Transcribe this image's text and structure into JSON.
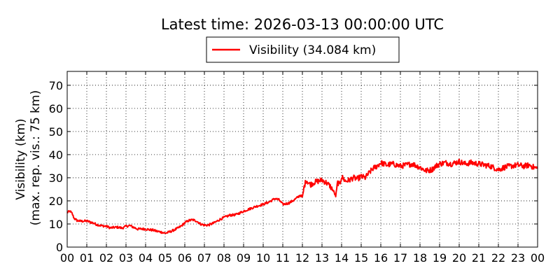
{
  "chart_data": {
    "type": "line",
    "title": "Latest time: 2026-03-13 00:00:00 UTC",
    "ylabel": "Visibility (km)",
    "ylabel2": "(max. rep. vis.: 75 km)",
    "xlabel": "",
    "xlim": [
      0,
      24
    ],
    "ylim": [
      0,
      76
    ],
    "x_ticks": [
      0,
      1,
      2,
      3,
      4,
      5,
      6,
      7,
      8,
      9,
      10,
      11,
      12,
      13,
      14,
      15,
      16,
      17,
      18,
      19,
      20,
      21,
      22,
      23,
      24
    ],
    "x_tick_labels": [
      "00",
      "01",
      "02",
      "03",
      "04",
      "05",
      "06",
      "07",
      "08",
      "09",
      "10",
      "11",
      "12",
      "13",
      "14",
      "15",
      "16",
      "17",
      "18",
      "19",
      "20",
      "21",
      "22",
      "23",
      "00"
    ],
    "y_ticks": [
      0,
      10,
      20,
      30,
      40,
      50,
      60,
      70
    ],
    "y_tick_labels": [
      "0",
      "10",
      "20",
      "30",
      "40",
      "50",
      "60",
      "70"
    ],
    "grid": true,
    "legend_position": "top-center",
    "series": [
      {
        "name": "Visibility (34.084 km)",
        "color": "#ff0000",
        "x": [
          0,
          0.15,
          0.25,
          0.35,
          0.5,
          0.7,
          1.0,
          1.3,
          1.5,
          1.7,
          2.0,
          2.2,
          2.4,
          2.6,
          2.8,
          3.0,
          3.2,
          3.4,
          3.6,
          3.8,
          4.0,
          4.2,
          4.4,
          4.6,
          4.8,
          5.0,
          5.2,
          5.4,
          5.6,
          5.8,
          6.0,
          6.2,
          6.4,
          6.6,
          6.8,
          7.0,
          7.2,
          7.5,
          7.8,
          8.0,
          8.3,
          8.6,
          9.0,
          9.3,
          9.6,
          10.0,
          10.3,
          10.6,
          10.8,
          11.0,
          11.3,
          11.6,
          11.9,
          12.0,
          12.1,
          12.2,
          12.4,
          12.6,
          12.8,
          13.0,
          13.2,
          13.4,
          13.6,
          13.7,
          13.8,
          13.9,
          14.0,
          14.2,
          14.4,
          14.6,
          14.8,
          15.0,
          15.2,
          15.4,
          15.6,
          15.8,
          16.0,
          16.3,
          16.6,
          17.0,
          17.3,
          17.6,
          18.0,
          18.3,
          18.6,
          18.8,
          19.0,
          19.3,
          19.6,
          20.0,
          20.3,
          20.6,
          21.0,
          21.3,
          21.6,
          22.0,
          22.3,
          22.6,
          23.0,
          23.3,
          23.6,
          23.8,
          24.0
        ],
        "y": [
          15,
          15.5,
          14.5,
          12.5,
          11.5,
          11.2,
          11.3,
          10.5,
          9.8,
          9.3,
          9.0,
          8.3,
          8.5,
          8.6,
          8.2,
          9.0,
          9.3,
          8.5,
          7.8,
          7.9,
          7.8,
          7.5,
          7.3,
          6.8,
          6.5,
          6.0,
          6.5,
          7.2,
          8.0,
          9.0,
          10.5,
          11.5,
          11.8,
          11.3,
          10.0,
          9.5,
          9.5,
          10.5,
          12.0,
          12.8,
          13.8,
          14.0,
          15.5,
          16.5,
          17.5,
          18.5,
          19.5,
          21.0,
          20.5,
          18.5,
          19.0,
          20.5,
          22.5,
          21.5,
          26.5,
          29.0,
          27.0,
          28.0,
          28.5,
          29.0,
          28.0,
          26.5,
          24.0,
          22.0,
          28.0,
          27.0,
          30.5,
          28.5,
          29.0,
          30.0,
          29.5,
          30.5,
          30.0,
          32.0,
          34.0,
          35.0,
          36.5,
          35.5,
          36.0,
          35.0,
          35.5,
          36.0,
          34.5,
          33.0,
          33.5,
          35.0,
          36.0,
          36.5,
          36.0,
          37.0,
          36.0,
          36.5,
          36.0,
          35.5,
          35.0,
          33.5,
          34.5,
          35.0,
          35.5,
          35.0,
          35.5,
          34.5,
          34.0
        ]
      }
    ]
  }
}
